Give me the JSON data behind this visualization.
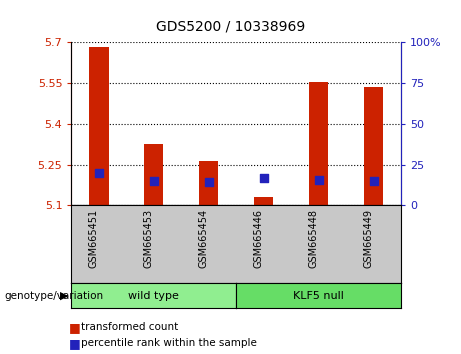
{
  "title": "GDS5200 / 10338969",
  "samples": [
    "GSM665451",
    "GSM665453",
    "GSM665454",
    "GSM665446",
    "GSM665448",
    "GSM665449"
  ],
  "red_bar_values": [
    5.685,
    5.325,
    5.265,
    5.13,
    5.555,
    5.535
  ],
  "blue_square_values": [
    5.22,
    5.19,
    5.185,
    5.2,
    5.195,
    5.19
  ],
  "y_min": 5.1,
  "y_max": 5.7,
  "y_ticks": [
    5.1,
    5.25,
    5.4,
    5.55,
    5.7
  ],
  "y2_ticks": [
    0,
    25,
    50,
    75,
    100
  ],
  "red_color": "#CC2200",
  "blue_color": "#2222BB",
  "bar_width": 0.35,
  "blue_square_size": 40,
  "gray_color": "#C8C8C8",
  "green_wt": "#90EE90",
  "green_klf": "#66DD66",
  "wt_label": "wild type",
  "klf_label": "KLF5 null",
  "geno_label": "genotype/variation",
  "legend1": "transformed count",
  "legend2": "percentile rank within the sample"
}
